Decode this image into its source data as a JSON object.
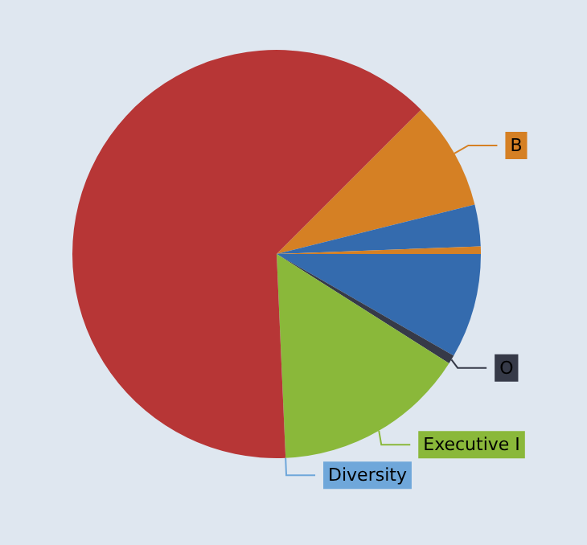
{
  "chart_data": {
    "type": "pie",
    "categories": [
      "B",
      null,
      null,
      null,
      "O",
      "Executive I",
      "Diversity",
      null
    ],
    "values": [
      8.6,
      3.3,
      0.6,
      8.3,
      0.7,
      15.3,
      0,
      63.2
    ],
    "colors": [
      "#d58024",
      "#346bae",
      "#d58024",
      "#346bae",
      "#363a48",
      "#8ab83a",
      "#6fa7da",
      "#b73636"
    ]
  }
}
